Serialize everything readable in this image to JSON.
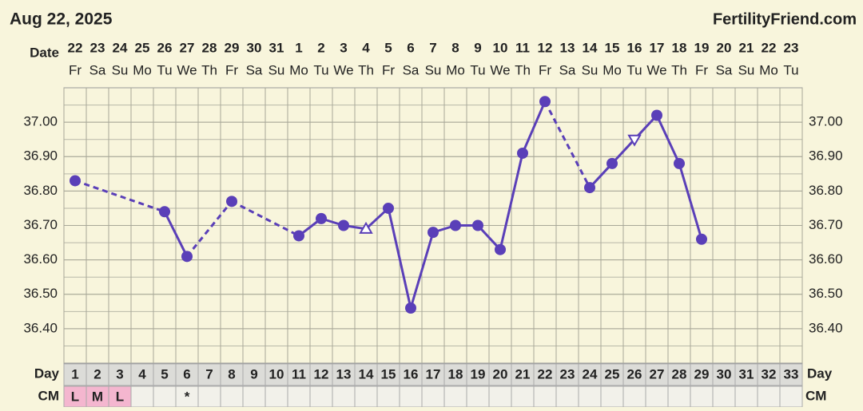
{
  "header": {
    "title": "Aug 22, 2025",
    "brand": "FertilityFriend.com"
  },
  "chart_data": {
    "type": "line",
    "row_labels": {
      "date": "Date",
      "day": "Day",
      "cm": "CM"
    },
    "dates": [
      "22",
      "23",
      "24",
      "25",
      "26",
      "27",
      "28",
      "29",
      "30",
      "31",
      "1",
      "2",
      "3",
      "4",
      "5",
      "6",
      "7",
      "8",
      "9",
      "10",
      "11",
      "12",
      "13",
      "14",
      "15",
      "16",
      "17",
      "18",
      "19",
      "20",
      "21",
      "22",
      "23"
    ],
    "weekdays": [
      "Fr",
      "Sa",
      "Su",
      "Mo",
      "Tu",
      "We",
      "Th",
      "Fr",
      "Sa",
      "Su",
      "Mo",
      "Tu",
      "We",
      "Th",
      "Fr",
      "Sa",
      "Su",
      "Mo",
      "Tu",
      "We",
      "Th",
      "Fr",
      "Sa",
      "Su",
      "Mo",
      "Tu",
      "We",
      "Th",
      "Fr",
      "Sa",
      "Su",
      "Mo",
      "Tu"
    ],
    "categories": [
      "1",
      "2",
      "3",
      "4",
      "5",
      "6",
      "7",
      "8",
      "9",
      "10",
      "11",
      "12",
      "13",
      "14",
      "15",
      "16",
      "17",
      "18",
      "19",
      "20",
      "21",
      "22",
      "23",
      "24",
      "25",
      "26",
      "27",
      "28",
      "29",
      "30",
      "31",
      "32",
      "33"
    ],
    "cm": [
      "L",
      "M",
      "L",
      null,
      null,
      "*",
      null,
      null,
      null,
      null,
      null,
      null,
      null,
      null,
      null,
      null,
      null,
      null,
      null,
      null,
      null,
      null,
      null,
      null,
      null,
      null,
      null,
      null,
      null,
      null,
      null,
      null,
      null
    ],
    "cm_fill": "#f4b6cf",
    "series": [
      {
        "color": "#5a3fb8",
        "values": [
          36.83,
          null,
          null,
          null,
          36.74,
          36.61,
          null,
          36.77,
          null,
          null,
          36.67,
          36.72,
          36.7,
          36.69,
          36.75,
          36.46,
          36.68,
          36.7,
          36.7,
          36.63,
          36.91,
          37.06,
          null,
          36.81,
          36.88,
          36.95,
          37.02,
          36.88,
          36.66,
          null,
          null,
          null,
          null
        ],
        "markers": [
          "circle",
          null,
          null,
          null,
          "circle",
          "circle",
          null,
          "circle",
          null,
          null,
          "circle",
          "circle",
          "circle",
          "triangle-up",
          "circle",
          "circle",
          "circle",
          "circle",
          "circle",
          "circle",
          "circle",
          "circle",
          null,
          "circle",
          "circle",
          "triangle-down",
          "circle",
          "circle",
          "circle",
          null,
          null,
          null,
          null
        ]
      }
    ],
    "ylim": [
      36.3,
      37.1
    ],
    "yticks": [
      {
        "value": 36.4,
        "label": "36.40"
      },
      {
        "value": 36.5,
        "label": "36.50"
      },
      {
        "value": 36.6,
        "label": "36.60"
      },
      {
        "value": 36.7,
        "label": "36.70"
      },
      {
        "value": 36.8,
        "label": "36.80"
      },
      {
        "value": 36.9,
        "label": "36.90"
      },
      {
        "value": 37.0,
        "label": "37.00"
      }
    ],
    "grid": true
  }
}
